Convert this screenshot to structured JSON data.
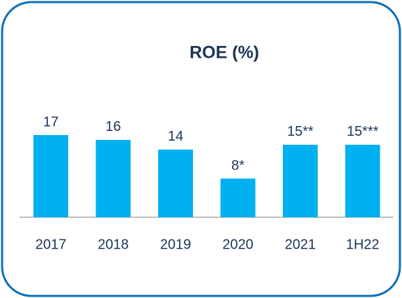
{
  "chart_data": {
    "type": "bar",
    "title": "ROE (%)",
    "categories": [
      "2017",
      "2018",
      "2019",
      "2020",
      "2021",
      "1H22"
    ],
    "values": [
      17,
      16,
      14,
      8,
      15,
      15
    ],
    "value_labels": [
      "17",
      "16",
      "14",
      "8*",
      "15**",
      "15***"
    ],
    "color": "#00b0f0"
  }
}
